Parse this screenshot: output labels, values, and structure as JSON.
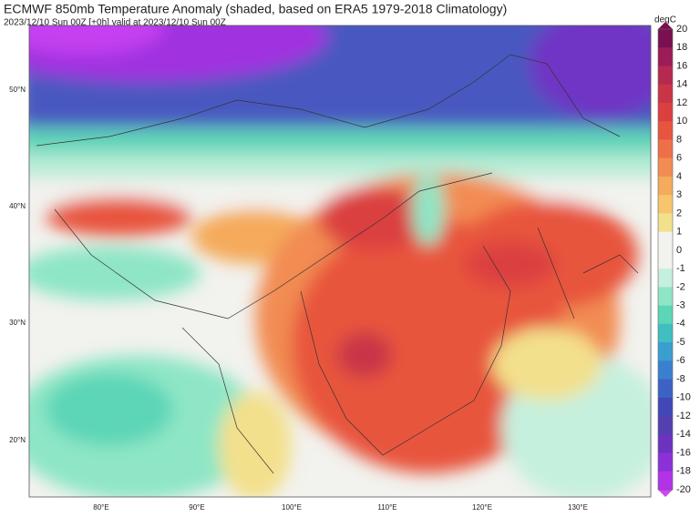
{
  "header": {
    "title": "ECMWF 850mb Temperature Anomaly (shaded, based on ERA5 1979-2018 Climatology)",
    "subtitle": "2023/12/10 Sun 00Z [+0h] valid at 2023/12/10 Sun 00Z"
  },
  "map": {
    "lat_labels": [
      "50°N",
      "40°N",
      "30°N",
      "20°N"
    ],
    "lon_labels": [
      "80°E",
      "90°E",
      "100°E",
      "110°E",
      "120°E",
      "130°E"
    ]
  },
  "colorbar": {
    "unit": "degC",
    "levels": [
      {
        "value": 20,
        "color": "#7a1050"
      },
      {
        "value": 18,
        "color": "#9c1c58"
      },
      {
        "value": 16,
        "color": "#b62a50"
      },
      {
        "value": 14,
        "color": "#c93546"
      },
      {
        "value": 12,
        "color": "#db3f40"
      },
      {
        "value": 10,
        "color": "#e8553e"
      },
      {
        "value": 8,
        "color": "#ee7048"
      },
      {
        "value": 6,
        "color": "#f28c52"
      },
      {
        "value": 4,
        "color": "#f5aa5c"
      },
      {
        "value": 3,
        "color": "#f7c66c"
      },
      {
        "value": 2,
        "color": "#f3e08c"
      },
      {
        "value": 1,
        "color": "#f2f2ee"
      },
      {
        "value": 0,
        "color": "#f2f2ee"
      },
      {
        "value": -1,
        "color": "#c6f0de"
      },
      {
        "value": -2,
        "color": "#8ee6c6"
      },
      {
        "value": -3,
        "color": "#5cd6b6"
      },
      {
        "value": -4,
        "color": "#40bec0"
      },
      {
        "value": -5,
        "color": "#3a9ed0"
      },
      {
        "value": -6,
        "color": "#3a80d0"
      },
      {
        "value": -8,
        "color": "#3c62c6"
      },
      {
        "value": -10,
        "color": "#4248b6"
      },
      {
        "value": -12,
        "color": "#5440b0"
      },
      {
        "value": -14,
        "color": "#6c32c0"
      },
      {
        "value": -16,
        "color": "#8c30d8"
      },
      {
        "value": -18,
        "color": "#b232e8"
      },
      {
        "value": -20,
        "color": "#d244f2"
      }
    ]
  }
}
